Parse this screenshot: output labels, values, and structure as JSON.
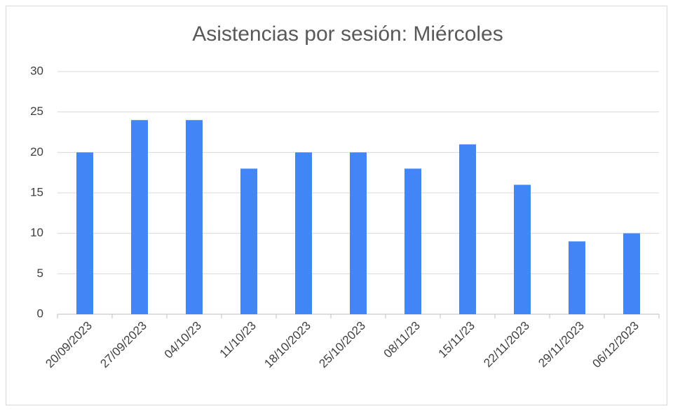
{
  "chart_data": {
    "type": "bar",
    "title": "Asistencias por sesión: Miércoles",
    "categories": [
      "20/09/2023",
      "27/09/2023",
      "04/10/23",
      "11/10/23",
      "18/10/2023",
      "25/10/2023",
      "08/11/23",
      "15/11/23",
      "22/11/2023",
      "29/11/2023",
      "06/12/2023"
    ],
    "values": [
      20,
      24,
      24,
      18,
      20,
      20,
      18,
      21,
      16,
      9,
      10
    ],
    "color": "#4285f4",
    "ylim": [
      0,
      30
    ],
    "yticks": [
      0,
      5,
      10,
      15,
      20,
      25,
      30
    ],
    "grid": true
  }
}
